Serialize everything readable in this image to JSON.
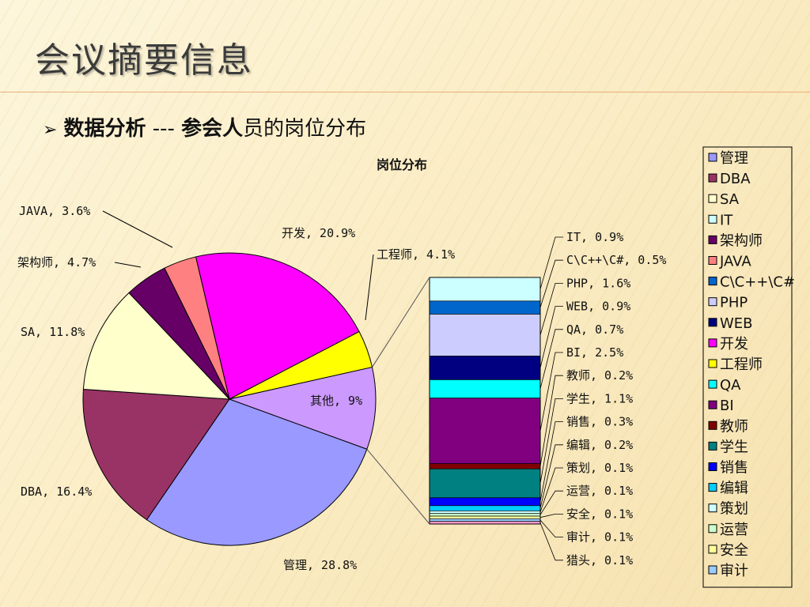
{
  "slide": {
    "title": "会议摘要信息",
    "bullet_arrow": "➢",
    "subtitle_bold": "数据分析",
    "subtitle_sep": " --- ",
    "subtitle_bold2": "参会人",
    "subtitle_rest": "员的岗位分布"
  },
  "chart_data": {
    "type": "pie",
    "title": "岗位分布",
    "pie": [
      {
        "name": "管理",
        "value": 28.8,
        "label": "管理, 28.8%",
        "color": "#9999ff"
      },
      {
        "name": "DBA",
        "value": 16.4,
        "label": "DBA, 16.4%",
        "color": "#993366"
      },
      {
        "name": "SA",
        "value": 11.8,
        "label": "SA, 11.8%",
        "color": "#ffffcc"
      },
      {
        "name": "架构师",
        "value": 4.7,
        "label": "架构师, 4.7%",
        "color": "#660066"
      },
      {
        "name": "JAVA",
        "value": 3.6,
        "label": "JAVA, 3.6%",
        "color": "#ff8080"
      },
      {
        "name": "开发",
        "value": 20.9,
        "label": "开发, 20.9%",
        "color": "#ff00ff"
      },
      {
        "name": "工程师",
        "value": 4.1,
        "label": "工程师, 4.1%",
        "color": "#ffff00"
      },
      {
        "name": "其他",
        "value": 9,
        "label": "其他, 9%",
        "color": "#cc99ff"
      }
    ],
    "breakdown": [
      {
        "name": "IT",
        "value": 0.9,
        "label": "IT, 0.9%",
        "color": "#ccffff"
      },
      {
        "name": "C\\C++\\C#",
        "value": 0.5,
        "label": "C\\C++\\C#, 0.5%",
        "color": "#0066cc"
      },
      {
        "name": "PHP",
        "value": 1.6,
        "label": "PHP, 1.6%",
        "color": "#ccccff"
      },
      {
        "name": "WEB",
        "value": 0.9,
        "label": "WEB, 0.9%",
        "color": "#000080"
      },
      {
        "name": "QA",
        "value": 0.7,
        "label": "QA, 0.7%",
        "color": "#00ffff"
      },
      {
        "name": "BI",
        "value": 2.5,
        "label": "BI, 2.5%",
        "color": "#800080"
      },
      {
        "name": "教师",
        "value": 0.2,
        "label": "教师, 0.2%",
        "color": "#800000"
      },
      {
        "name": "学生",
        "value": 1.1,
        "label": "学生, 1.1%",
        "color": "#008080"
      },
      {
        "name": "销售",
        "value": 0.3,
        "label": "销售, 0.3%",
        "color": "#0000ff"
      },
      {
        "name": "编辑",
        "value": 0.2,
        "label": "编辑, 0.2%",
        "color": "#00ccff"
      },
      {
        "name": "策划",
        "value": 0.1,
        "label": "策划, 0.1%",
        "color": "#ccffff"
      },
      {
        "name": "运营",
        "value": 0.1,
        "label": "运营, 0.1%",
        "color": "#ccffcc"
      },
      {
        "name": "安全",
        "value": 0.1,
        "label": "安全, 0.1%",
        "color": "#ffff99"
      },
      {
        "name": "审计",
        "value": 0.1,
        "label": "审计, 0.1%",
        "color": "#99ccff"
      },
      {
        "name": "猎头",
        "value": 0.1,
        "label": "猎头, 0.1%",
        "color": "#ff99cc"
      }
    ],
    "legend": [
      "管理",
      "DBA",
      "SA",
      "IT",
      "架构师",
      "JAVA",
      "C\\C++\\C#",
      "PHP",
      "WEB",
      "开发",
      "工程师",
      "QA",
      "BI",
      "教师",
      "学生",
      "销售",
      "编辑",
      "策划",
      "运营",
      "安全",
      "审计"
    ],
    "legend_colors": [
      "#9999ff",
      "#993366",
      "#ffffcc",
      "#ccffff",
      "#660066",
      "#ff8080",
      "#0066cc",
      "#ccccff",
      "#000080",
      "#ff00ff",
      "#ffff00",
      "#00ffff",
      "#800080",
      "#800000",
      "#008080",
      "#0000ff",
      "#00ccff",
      "#ccffff",
      "#ccffcc",
      "#ffff99",
      "#99ccff"
    ],
    "legend_placement": "right"
  }
}
